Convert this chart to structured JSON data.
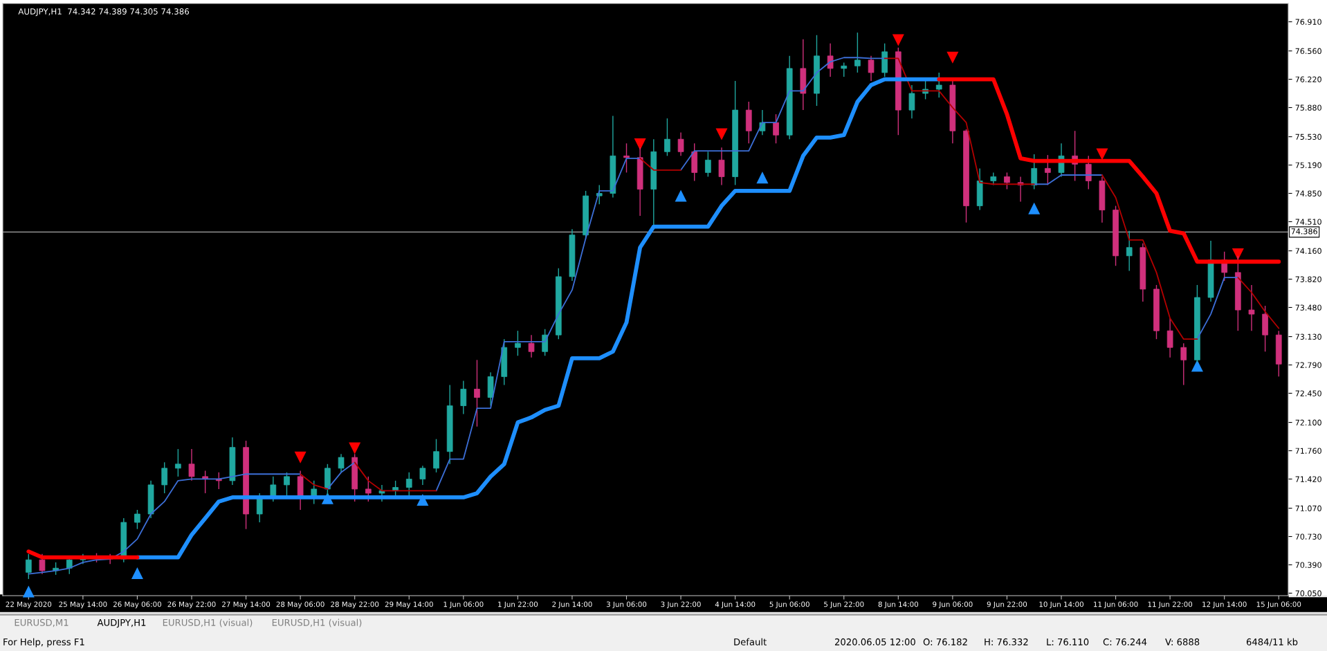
{
  "chart_data": {
    "type": "candlestick",
    "title": "AUDJPY,H1  74.342 74.389 74.305 74.386",
    "categories": [
      "22 May 2020",
      null,
      null,
      null,
      "25 May 14:00",
      null,
      null,
      null,
      "26 May 06:00",
      null,
      null,
      null,
      "26 May 22:00",
      null,
      null,
      null,
      "27 May 14:00",
      null,
      null,
      null,
      "28 May 06:00",
      null,
      null,
      null,
      "28 May 22:00",
      null,
      null,
      null,
      "29 May 14:00",
      null,
      null,
      null,
      "1 Jun 06:00",
      null,
      null,
      null,
      "1 Jun 22:00",
      null,
      null,
      null,
      "2 Jun 14:00",
      null,
      null,
      null,
      "3 Jun 06:00",
      null,
      null,
      null,
      "3 Jun 22:00",
      null,
      null,
      null,
      "4 Jun 14:00",
      null,
      null,
      null,
      "5 Jun 06:00",
      null,
      null,
      null,
      "5 Jun 22:00",
      null,
      null,
      null,
      "8 Jun 14:00",
      null,
      null,
      null,
      "9 Jun 06:00",
      null,
      null,
      null,
      "9 Jun 22:00",
      null,
      null,
      null,
      "10 Jun 14:00",
      null,
      null,
      null,
      "11 Jun 06:00",
      null,
      null,
      null,
      "11 Jun 22:00",
      null,
      null,
      null,
      "12 Jun 14:00",
      null,
      null,
      null,
      "15 Jun 06:00"
    ],
    "ohlc": [
      [
        70.3,
        70.52,
        70.22,
        70.45
      ],
      [
        70.45,
        70.52,
        70.28,
        70.32
      ],
      [
        70.32,
        70.42,
        70.27,
        70.35
      ],
      [
        70.35,
        70.48,
        70.28,
        70.45
      ],
      [
        70.45,
        70.52,
        70.4,
        70.48
      ],
      [
        70.48,
        70.53,
        70.42,
        70.47
      ],
      [
        70.47,
        70.52,
        70.4,
        70.46
      ],
      [
        70.46,
        70.95,
        70.42,
        70.9
      ],
      [
        70.9,
        71.05,
        70.82,
        71.0
      ],
      [
        71.0,
        71.4,
        70.95,
        71.35
      ],
      [
        71.35,
        71.62,
        71.25,
        71.55
      ],
      [
        71.55,
        71.78,
        71.45,
        71.6
      ],
      [
        71.6,
        71.78,
        71.4,
        71.45
      ],
      [
        71.45,
        71.52,
        71.25,
        71.42
      ],
      [
        71.42,
        71.5,
        71.3,
        71.4
      ],
      [
        71.4,
        71.92,
        71.35,
        71.8
      ],
      [
        71.8,
        71.88,
        70.82,
        71.0
      ],
      [
        71.0,
        71.25,
        70.9,
        71.2
      ],
      [
        71.2,
        71.45,
        71.15,
        71.35
      ],
      [
        71.35,
        71.5,
        71.2,
        71.45
      ],
      [
        71.45,
        71.52,
        71.05,
        71.2
      ],
      [
        71.2,
        71.4,
        71.12,
        71.3
      ],
      [
        71.3,
        71.6,
        71.22,
        71.55
      ],
      [
        71.55,
        71.72,
        71.5,
        71.68
      ],
      [
        71.68,
        71.72,
        71.15,
        71.3
      ],
      [
        71.3,
        71.45,
        71.15,
        71.25
      ],
      [
        71.25,
        71.35,
        71.15,
        71.28
      ],
      [
        71.28,
        71.4,
        71.2,
        71.32
      ],
      [
        71.32,
        71.5,
        71.2,
        71.42
      ],
      [
        71.42,
        71.58,
        71.35,
        71.55
      ],
      [
        71.55,
        71.9,
        71.5,
        71.75
      ],
      [
        71.75,
        72.55,
        71.6,
        72.3
      ],
      [
        72.3,
        72.6,
        72.2,
        72.5
      ],
      [
        72.5,
        72.85,
        72.05,
        72.4
      ],
      [
        72.4,
        72.7,
        72.3,
        72.65
      ],
      [
        72.65,
        73.1,
        72.55,
        73.0
      ],
      [
        73.0,
        73.2,
        72.9,
        73.05
      ],
      [
        73.05,
        73.15,
        72.88,
        72.95
      ],
      [
        72.95,
        73.22,
        72.9,
        73.15
      ],
      [
        73.15,
        73.95,
        73.1,
        73.85
      ],
      [
        73.85,
        74.42,
        73.8,
        74.35
      ],
      [
        74.35,
        74.88,
        74.3,
        74.82
      ],
      [
        74.82,
        74.95,
        74.72,
        74.85
      ],
      [
        74.85,
        75.78,
        74.8,
        75.3
      ],
      [
        75.3,
        75.45,
        75.1,
        75.28
      ],
      [
        75.28,
        75.4,
        74.58,
        74.9
      ],
      [
        74.9,
        75.5,
        74.45,
        75.35
      ],
      [
        75.35,
        75.75,
        75.3,
        75.5
      ],
      [
        75.5,
        75.58,
        75.3,
        75.35
      ],
      [
        75.35,
        75.45,
        75.0,
        75.1
      ],
      [
        75.1,
        75.35,
        75.05,
        75.25
      ],
      [
        75.25,
        75.4,
        74.95,
        75.05
      ],
      [
        75.05,
        76.2,
        74.95,
        75.85
      ],
      [
        75.85,
        75.95,
        75.45,
        75.6
      ],
      [
        75.6,
        75.85,
        75.55,
        75.7
      ],
      [
        75.7,
        75.8,
        75.45,
        75.55
      ],
      [
        75.55,
        76.5,
        75.5,
        76.35
      ],
      [
        76.35,
        76.7,
        75.85,
        76.05
      ],
      [
        76.05,
        76.75,
        75.9,
        76.5
      ],
      [
        76.5,
        76.65,
        76.25,
        76.35
      ],
      [
        76.35,
        76.42,
        76.25,
        76.38
      ],
      [
        76.38,
        76.78,
        76.3,
        76.45
      ],
      [
        76.45,
        76.5,
        76.2,
        76.3
      ],
      [
        76.3,
        76.65,
        76.25,
        76.55
      ],
      [
        76.55,
        76.6,
        75.55,
        75.85
      ],
      [
        75.85,
        76.15,
        75.75,
        76.05
      ],
      [
        76.05,
        76.2,
        75.98,
        76.1
      ],
      [
        76.1,
        76.3,
        76.0,
        76.15
      ],
      [
        76.15,
        76.2,
        75.45,
        75.6
      ],
      [
        75.6,
        75.62,
        74.5,
        74.7
      ],
      [
        74.7,
        75.15,
        74.65,
        75.0
      ],
      [
        75.0,
        75.1,
        74.95,
        75.05
      ],
      [
        75.05,
        75.1,
        74.9,
        74.98
      ],
      [
        74.98,
        75.05,
        74.75,
        74.95
      ],
      [
        74.95,
        75.32,
        74.9,
        75.15
      ],
      [
        75.15,
        75.31,
        74.95,
        75.1
      ],
      [
        75.1,
        75.45,
        75.05,
        75.3
      ],
      [
        75.3,
        75.6,
        75.0,
        75.2
      ],
      [
        75.2,
        75.3,
        74.9,
        75.0
      ],
      [
        75.0,
        75.05,
        74.5,
        74.65
      ],
      [
        74.65,
        74.7,
        73.98,
        74.1
      ],
      [
        74.1,
        74.4,
        73.92,
        74.2
      ],
      [
        74.2,
        74.25,
        73.55,
        73.7
      ],
      [
        73.7,
        73.75,
        73.1,
        73.2
      ],
      [
        73.2,
        73.35,
        72.88,
        73.0
      ],
      [
        73.0,
        73.05,
        72.55,
        72.85
      ],
      [
        72.85,
        73.75,
        72.82,
        73.6
      ],
      [
        73.6,
        74.28,
        73.55,
        74.05
      ],
      [
        74.05,
        74.15,
        73.8,
        73.9
      ],
      [
        73.9,
        74.1,
        73.2,
        73.45
      ],
      [
        73.45,
        73.75,
        73.2,
        73.4
      ],
      [
        73.4,
        73.5,
        72.95,
        73.15
      ],
      [
        73.15,
        73.2,
        72.65,
        72.8
      ]
    ],
    "colors": [
      "#20a8a0",
      "#d0307c",
      "#20a8a0",
      "#20a8a0",
      "#20a8a0",
      "#d0307c",
      "#d0307c",
      "#20a8a0",
      "#20a8a0",
      "#20a8a0",
      "#20a8a0",
      "#20a8a0",
      "#d0307c",
      "#d0307c",
      "#d0307c",
      "#20a8a0",
      "#d0307c",
      "#20a8a0",
      "#20a8a0",
      "#20a8a0",
      "#d0307c",
      "#20a8a0",
      "#20a8a0",
      "#20a8a0",
      "#d0307c",
      "#d0307c",
      "#20a8a0",
      "#20a8a0",
      "#20a8a0",
      "#20a8a0",
      "#20a8a0",
      "#20a8a0",
      "#20a8a0",
      "#d0307c",
      "#20a8a0",
      "#20a8a0",
      "#20a8a0",
      "#d0307c",
      "#20a8a0",
      "#20a8a0",
      "#20a8a0",
      "#20a8a0",
      "#20a8a0",
      "#20a8a0",
      "#d0307c",
      "#d0307c",
      "#20a8a0",
      "#20a8a0",
      "#d0307c",
      "#d0307c",
      "#20a8a0",
      "#d0307c",
      "#20a8a0",
      "#d0307c",
      "#20a8a0",
      "#d0307c",
      "#20a8a0",
      "#d0307c",
      "#20a8a0",
      "#d0307c",
      "#20a8a0",
      "#20a8a0",
      "#d0307c",
      "#20a8a0",
      "#d0307c",
      "#20a8a0",
      "#20a8a0",
      "#20a8a0",
      "#d0307c",
      "#d0307c",
      "#20a8a0",
      "#20a8a0",
      "#d0307c",
      "#d0307c",
      "#20a8a0",
      "#d0307c",
      "#20a8a0",
      "#d0307c",
      "#d0307c",
      "#d0307c",
      "#d0307c",
      "#20a8a0",
      "#d0307c",
      "#d0307c",
      "#d0307c",
      "#d0307c",
      "#20a8a0",
      "#20a8a0",
      "#d0307c",
      "#d0307c",
      "#d0307c",
      "#d0307c",
      "#d0307c"
    ],
    "series": [
      {
        "type": "line",
        "color": "#3c6fd8",
        "values": [
          70.28,
          70.3,
          70.32,
          70.35,
          70.42,
          70.45,
          70.46,
          70.55,
          70.7,
          71.0,
          71.15,
          71.4,
          71.42,
          71.42,
          71.42,
          71.45,
          71.48,
          71.48,
          71.48,
          71.48,
          71.48,
          null,
          71.3,
          71.5,
          71.62,
          null,
          null,
          null,
          null,
          null,
          71.28,
          71.66,
          71.66,
          72.27,
          72.27,
          73.07,
          73.07,
          73.07,
          73.07,
          73.4,
          73.69,
          74.31,
          74.88,
          74.88,
          75.27,
          75.27,
          null,
          null,
          75.13,
          75.36,
          75.36,
          75.36,
          75.36,
          75.36,
          75.7,
          75.7,
          76.08,
          76.08,
          76.3,
          76.43,
          76.48,
          76.48,
          76.47,
          76.47,
          null,
          null,
          null,
          null,
          null,
          null,
          null,
          null,
          null,
          null,
          74.96,
          74.96,
          75.07,
          75.07,
          75.07,
          75.07,
          null,
          null,
          null,
          null,
          null,
          null,
          73.1,
          73.4,
          73.84,
          73.84,
          null,
          null,
          null
        ]
      },
      {
        "type": "line",
        "color": "#b40000",
        "values": [
          null,
          null,
          null,
          null,
          null,
          null,
          null,
          null,
          null,
          null,
          null,
          null,
          null,
          null,
          null,
          null,
          null,
          null,
          null,
          null,
          71.48,
          71.35,
          71.3,
          null,
          71.62,
          71.4,
          71.28,
          71.28,
          71.28,
          71.28,
          71.28,
          null,
          null,
          null,
          null,
          null,
          null,
          null,
          null,
          null,
          null,
          null,
          null,
          null,
          null,
          75.27,
          75.13,
          75.13,
          75.13,
          null,
          null,
          null,
          null,
          null,
          null,
          null,
          null,
          null,
          null,
          null,
          null,
          null,
          null,
          76.47,
          76.47,
          76.08,
          76.08,
          76.08,
          75.88,
          75.7,
          74.98,
          74.96,
          74.96,
          74.96,
          74.96,
          null,
          null,
          null,
          null,
          75.07,
          74.8,
          74.29,
          74.29,
          73.9,
          73.35,
          73.1,
          73.1,
          null,
          null,
          73.84,
          73.66,
          73.43,
          73.23
        ]
      },
      {
        "type": "line",
        "color": "#1e8fff",
        "values": [
          null,
          null,
          null,
          null,
          null,
          null,
          null,
          null,
          70.48,
          70.48,
          70.48,
          70.48,
          70.75,
          70.95,
          71.15,
          71.2,
          71.2,
          71.2,
          71.2,
          71.2,
          71.2,
          71.2,
          71.2,
          71.2,
          71.2,
          71.2,
          71.2,
          71.2,
          71.2,
          71.2,
          71.2,
          71.2,
          71.2,
          71.25,
          71.45,
          71.6,
          72.1,
          72.16,
          72.25,
          72.3,
          72.87,
          72.87,
          72.87,
          72.95,
          73.3,
          74.2,
          74.45,
          74.45,
          74.45,
          74.45,
          74.45,
          74.7,
          74.88,
          74.88,
          74.88,
          74.88,
          74.88,
          75.3,
          75.52,
          75.52,
          75.55,
          75.95,
          76.15,
          76.22,
          76.22,
          76.22,
          76.22,
          76.22,
          null,
          null,
          null,
          null,
          null,
          null,
          null,
          null,
          null,
          null,
          null,
          null,
          null,
          null,
          null,
          null,
          null,
          null,
          null,
          null,
          null,
          null,
          null,
          null,
          null
        ]
      },
      {
        "type": "line",
        "color": "#ff0000",
        "values": [
          70.55,
          70.48,
          70.48,
          70.48,
          70.48,
          70.48,
          70.48,
          70.48,
          70.48,
          null,
          null,
          null,
          null,
          null,
          null,
          null,
          null,
          null,
          null,
          null,
          null,
          null,
          null,
          null,
          null,
          null,
          null,
          null,
          null,
          null,
          null,
          null,
          null,
          null,
          null,
          null,
          null,
          null,
          null,
          null,
          null,
          null,
          null,
          null,
          null,
          null,
          null,
          null,
          null,
          null,
          null,
          null,
          null,
          null,
          null,
          null,
          null,
          null,
          null,
          null,
          null,
          null,
          null,
          null,
          null,
          null,
          null,
          76.22,
          76.22,
          76.22,
          76.22,
          76.22,
          75.8,
          75.27,
          75.24,
          75.24,
          75.24,
          75.24,
          75.24,
          75.24,
          75.24,
          75.24,
          75.05,
          74.85,
          74.4,
          74.37,
          74.03,
          74.03,
          74.03,
          74.03,
          74.03,
          74.03,
          74.03
        ]
      },
      {
        "type": "scatter",
        "color": "#1e8fff",
        "marker": "triangle",
        "values": [
          70.07,
          null,
          null,
          null,
          null,
          null,
          null,
          null,
          70.29,
          null,
          null,
          null,
          null,
          null,
          null,
          null,
          null,
          null,
          null,
          null,
          null,
          null,
          71.19,
          null,
          null,
          null,
          null,
          null,
          null,
          71.17,
          null,
          null,
          null,
          null,
          null,
          null,
          null,
          null,
          null,
          null,
          null,
          null,
          null,
          null,
          null,
          null,
          null,
          null,
          74.82,
          null,
          null,
          null,
          null,
          null,
          75.04,
          null,
          null,
          null,
          null,
          null,
          null,
          null,
          null,
          null,
          null,
          null,
          null,
          null,
          null,
          null,
          null,
          null,
          null,
          null,
          74.67,
          null,
          null,
          null,
          null,
          null,
          null,
          null,
          null,
          null,
          null,
          null,
          72.78,
          null,
          null,
          null,
          null,
          null,
          null
        ]
      },
      {
        "type": "scatter",
        "color": "#ff0000",
        "marker": "triangle",
        "values": [
          null,
          null,
          null,
          null,
          null,
          null,
          null,
          null,
          null,
          null,
          null,
          null,
          null,
          null,
          null,
          null,
          null,
          null,
          null,
          null,
          71.68,
          null,
          null,
          null,
          71.79,
          null,
          null,
          null,
          null,
          null,
          null,
          null,
          null,
          null,
          null,
          null,
          null,
          null,
          null,
          null,
          null,
          null,
          null,
          null,
          null,
          75.44,
          null,
          null,
          null,
          null,
          null,
          75.56,
          null,
          null,
          null,
          null,
          null,
          null,
          null,
          null,
          null,
          null,
          null,
          null,
          76.69,
          null,
          null,
          null,
          76.48,
          null,
          null,
          null,
          null,
          null,
          null,
          null,
          null,
          null,
          null,
          75.32,
          null,
          null,
          null,
          null,
          null,
          null,
          null,
          null,
          null,
          74.12,
          null,
          null,
          null
        ]
      }
    ],
    "ylim": [
      70.02,
      77.13
    ],
    "yticks": [
      {
        "value": 70.05,
        "label": "70.050"
      },
      {
        "value": 70.39,
        "label": "70.390"
      },
      {
        "value": 70.73,
        "label": "70.730"
      },
      {
        "value": 71.07,
        "label": "71.070"
      },
      {
        "value": 71.42,
        "label": "71.420"
      },
      {
        "value": 71.76,
        "label": "71.760"
      },
      {
        "value": 72.1,
        "label": "72.100"
      },
      {
        "value": 72.45,
        "label": "72.450"
      },
      {
        "value": 72.79,
        "label": "72.790"
      },
      {
        "value": 73.13,
        "label": "73.130"
      },
      {
        "value": 73.48,
        "label": "73.480"
      },
      {
        "value": 73.82,
        "label": "73.820"
      },
      {
        "value": 74.16,
        "label": "74.160"
      },
      {
        "value": 74.51,
        "label": "74.510"
      },
      {
        "value": 74.85,
        "label": "74.850"
      },
      {
        "value": 75.19,
        "label": "75.190"
      },
      {
        "value": 75.53,
        "label": "75.530"
      },
      {
        "value": 75.88,
        "label": "75.880"
      },
      {
        "value": 76.22,
        "label": "76.220"
      },
      {
        "value": 76.56,
        "label": "76.560"
      },
      {
        "value": 76.91,
        "label": "76.910"
      }
    ],
    "ref_lines": [
      {
        "axis": "y",
        "value": 74.386,
        "label": "74.386",
        "color": "#a8a8a8"
      }
    ],
    "annotations": [
      "EURUSD,M1",
      "AUDJPY,H1",
      "EURUSD,H1 (visual)",
      "EURUSD,H1 (visual)",
      "For Help, press F1",
      "Default",
      "2020.06.05 12:00",
      "O: 76.182",
      "H: 76.332",
      "L: 76.110",
      "C: 76.244",
      "V: 6888",
      "6484/11 kb"
    ]
  }
}
